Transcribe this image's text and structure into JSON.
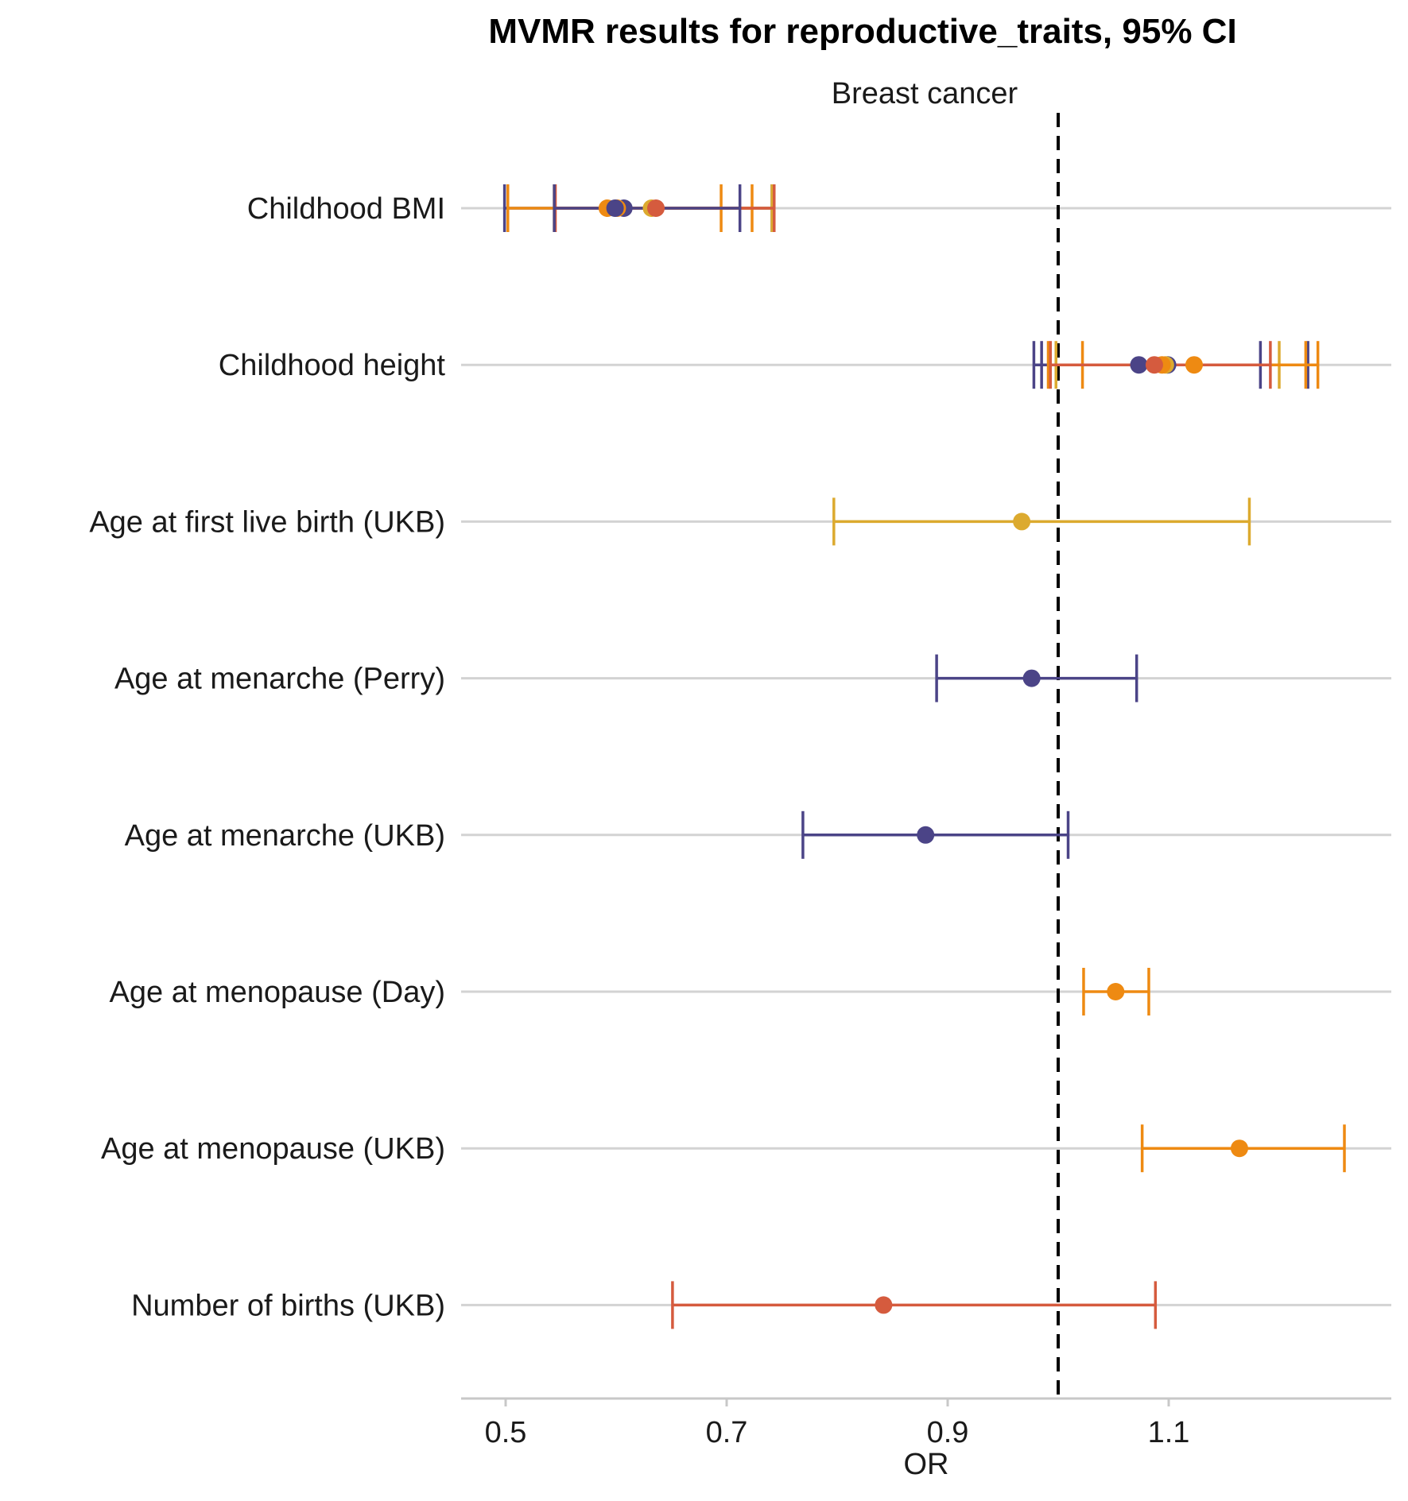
{
  "chart_data": {
    "type": "scatter",
    "subtype": "forest-plot",
    "title": "MVMR results for reproductive_traits, 95% CI",
    "facet_label": "Breast cancer",
    "xlabel": "OR",
    "ylabel": "",
    "xlim": [
      0.46,
      1.3
    ],
    "x_ticks": [
      0.5,
      0.7,
      0.9,
      1.1
    ],
    "x_tick_labels": [
      "0.5",
      "0.7",
      "0.9",
      "1.1"
    ],
    "reference_line": 1.0,
    "grid": "horizontal",
    "legend": "none",
    "categories": [
      "Childhood BMI",
      "Childhood height",
      "Age at first live birth (UKB)",
      "Age at menarche (Perry)",
      "Age at menarche (UKB)",
      "Age at menopause (Day)",
      "Age at menopause (UKB)",
      "Number of births (UKB)"
    ],
    "colors": {
      "purple": "#4b4487",
      "gold": "#dcaa2f",
      "orange": "#ee8a12",
      "red": "#d55b3e",
      "grid": "#d3d3d3",
      "reference": "#000000"
    },
    "points": [
      {
        "category": "Childhood BMI",
        "color": "purple",
        "or": 0.607,
        "lo": 0.499,
        "hi": 0.741
      },
      {
        "category": "Childhood BMI",
        "color": "gold",
        "or": 0.632,
        "lo": 0.544,
        "hi": 0.741
      },
      {
        "category": "Childhood BMI",
        "color": "orange",
        "or": 0.592,
        "lo": 0.502,
        "hi": 0.695
      },
      {
        "category": "Childhood BMI",
        "color": "orange",
        "or": 0.601,
        "lo": 0.544,
        "hi": 0.723
      },
      {
        "category": "Childhood BMI",
        "color": "red",
        "or": 0.636,
        "lo": 0.545,
        "hi": 0.743
      },
      {
        "category": "Childhood BMI",
        "color": "purple",
        "or": 0.599,
        "lo": 0.544,
        "hi": 0.712
      },
      {
        "category": "Childhood height",
        "color": "purple",
        "or": 1.073,
        "lo": 0.978,
        "hi": 1.183
      },
      {
        "category": "Childhood height",
        "color": "purple",
        "or": 1.099,
        "lo": 0.985,
        "hi": 1.226
      },
      {
        "category": "Childhood height",
        "color": "gold",
        "or": 1.097,
        "lo": 0.998,
        "hi": 1.2
      },
      {
        "category": "Childhood height",
        "color": "orange",
        "or": 1.123,
        "lo": 1.022,
        "hi": 1.235
      },
      {
        "category": "Childhood height",
        "color": "orange",
        "or": 1.094,
        "lo": 0.991,
        "hi": 1.224
      },
      {
        "category": "Childhood height",
        "color": "red",
        "or": 1.087,
        "lo": 0.993,
        "hi": 1.192
      },
      {
        "category": "Age at first live birth (UKB)",
        "color": "gold",
        "or": 0.967,
        "lo": 0.797,
        "hi": 1.173
      },
      {
        "category": "Age at menarche (Perry)",
        "color": "purple",
        "or": 0.976,
        "lo": 0.89,
        "hi": 1.071
      },
      {
        "category": "Age at menarche (UKB)",
        "color": "purple",
        "or": 0.88,
        "lo": 0.769,
        "hi": 1.009
      },
      {
        "category": "Age at menopause (Day)",
        "color": "orange",
        "or": 1.052,
        "lo": 1.023,
        "hi": 1.082
      },
      {
        "category": "Age at menopause (UKB)",
        "color": "orange",
        "or": 1.164,
        "lo": 1.076,
        "hi": 1.259
      },
      {
        "category": "Number of births (UKB)",
        "color": "red",
        "or": 0.842,
        "lo": 0.651,
        "hi": 1.088
      }
    ]
  }
}
